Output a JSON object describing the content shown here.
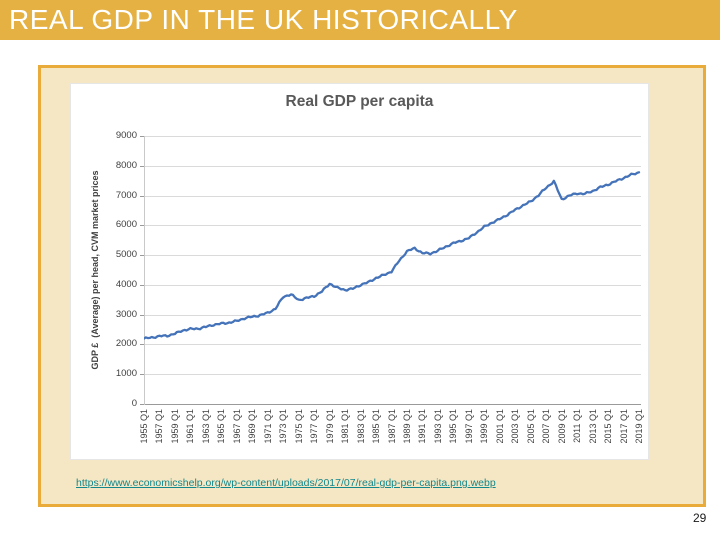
{
  "slide": {
    "title": "REAL GDP IN THE UK HISTORICALLY",
    "source_url": "https://www.economicshelp.org/wp-content/uploads/2017/07/real-gdp-per-capita.png.webp",
    "page_number": "29"
  },
  "colors": {
    "title_bar_bg": "#E5B143",
    "title_text": "#FFFFFF",
    "box_border": "#E9AC3B",
    "box_bg": "#F6E7C4",
    "chart_bg": "#FFFFFF",
    "line": "#4573B9",
    "gridline": "#DADADA",
    "axis_line": "#9A9A9A",
    "axis_text": "#404040",
    "chart_title_text": "#595959",
    "link": "#12878C"
  },
  "chart_data": {
    "type": "line",
    "title": "Real GDP per capita",
    "xlabel": "",
    "ylabel": "GDP £  (Average) per head, CVM market prices",
    "legend": "none",
    "grid": true,
    "ylim": [
      0,
      9000
    ],
    "y_ticks": [
      0,
      1000,
      2000,
      3000,
      4000,
      5000,
      6000,
      7000,
      8000,
      9000
    ],
    "x_tick_labels": [
      "1955 Q1",
      "1957 Q1",
      "1959 Q1",
      "1961 Q1",
      "1963 Q1",
      "1965 Q1",
      "1967 Q1",
      "1969 Q1",
      "1971 Q1",
      "1973 Q1",
      "1975 Q1",
      "1977 Q1",
      "1979 Q1",
      "1981 Q1",
      "1983 Q1",
      "1985 Q1",
      "1987 Q1",
      "1989 Q1",
      "1991 Q1",
      "1993 Q1",
      "1995 Q1",
      "1997 Q1",
      "1999 Q1",
      "2001 Q1",
      "2003 Q1",
      "2005 Q1",
      "2007 Q1",
      "2009 Q1",
      "2011 Q1",
      "2013 Q1",
      "2015 Q1",
      "2017 Q1",
      "2019 Q1"
    ],
    "series": [
      {
        "name": "Real GDP per capita",
        "years": [
          1955,
          1956,
          1957,
          1958,
          1959,
          1960,
          1961,
          1962,
          1963,
          1964,
          1965,
          1966,
          1967,
          1968,
          1969,
          1970,
          1971,
          1972,
          1973,
          1974,
          1975,
          1976,
          1977,
          1978,
          1979,
          1980,
          1981,
          1982,
          1983,
          1984,
          1985,
          1986,
          1987,
          1988,
          1989,
          1990,
          1991,
          1992,
          1993,
          1994,
          1995,
          1996,
          1997,
          1998,
          1999,
          2000,
          2001,
          2002,
          2003,
          2004,
          2005,
          2006,
          2007,
          2008,
          2009,
          2010,
          2011,
          2012,
          2013,
          2014,
          2015,
          2016,
          2017,
          2018,
          2019
        ],
        "values": [
          2200,
          2230,
          2280,
          2290,
          2360,
          2470,
          2520,
          2530,
          2590,
          2660,
          2700,
          2730,
          2790,
          2880,
          2930,
          2980,
          3060,
          3200,
          3600,
          3680,
          3490,
          3560,
          3620,
          3780,
          4040,
          3900,
          3830,
          3870,
          4000,
          4090,
          4230,
          4330,
          4450,
          4810,
          5130,
          5230,
          5070,
          5050,
          5150,
          5280,
          5400,
          5480,
          5570,
          5760,
          5950,
          6090,
          6210,
          6360,
          6520,
          6670,
          6800,
          7010,
          7260,
          7480,
          6870,
          7000,
          7070,
          7060,
          7150,
          7280,
          7370,
          7480,
          7590,
          7700,
          7780
        ]
      }
    ]
  }
}
